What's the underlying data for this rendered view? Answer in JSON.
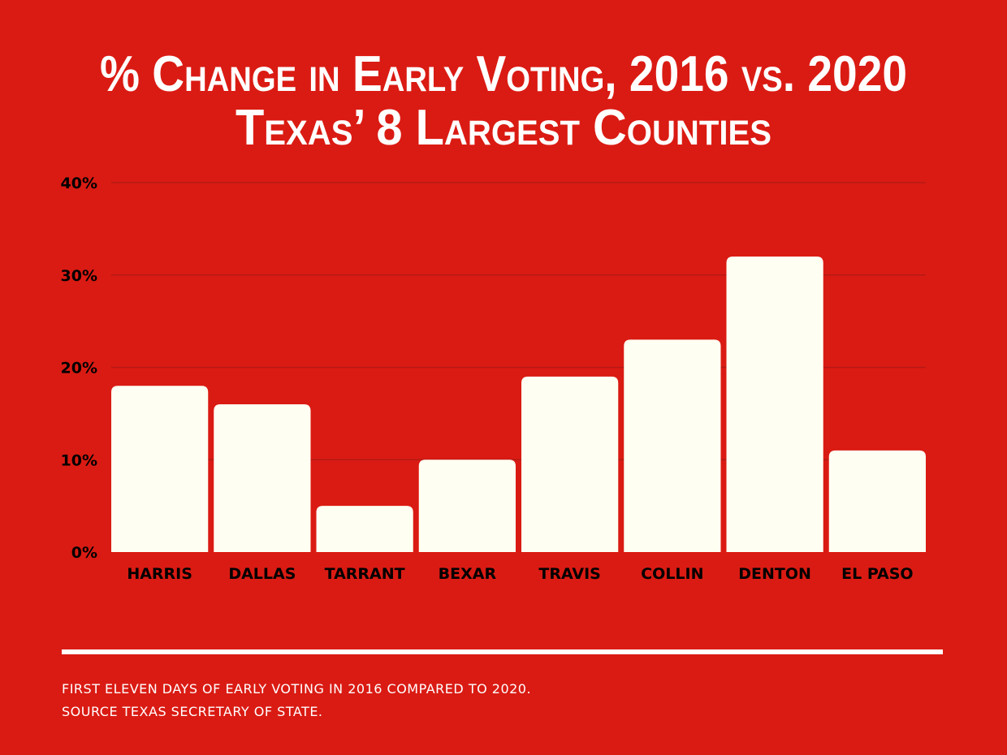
{
  "chart_data": {
    "type": "bar",
    "title": "% Change in Early Voting, 2016 vs. 2020",
    "subtitle": "Texas’ 8 Largest Counties",
    "categories": [
      "HARRIS",
      "DALLAS",
      "TARRANT",
      "BEXAR",
      "TRAVIS",
      "COLLIN",
      "DENTON",
      "EL PASO"
    ],
    "values": [
      18,
      16,
      5,
      10,
      19,
      23,
      32,
      11
    ],
    "unit": "%",
    "ylim": [
      0,
      40
    ],
    "yticks": [
      "0%",
      "10%",
      "20%",
      "30%",
      "40%"
    ],
    "grid": true,
    "xlabel": "",
    "ylabel": ""
  },
  "footnote": {
    "line1": "FIRST ELEVEN DAYS OF EARLY VOTING IN 2016 COMPARED TO 2020.",
    "line2": "SOURCE TEXAS SECRETARY OF STATE."
  },
  "colors": {
    "background": "#DA1B13",
    "bar": "#FFFEF2",
    "grid": "#B51A14",
    "title": "#FFFFFF",
    "divider": "#FFFFFF"
  }
}
